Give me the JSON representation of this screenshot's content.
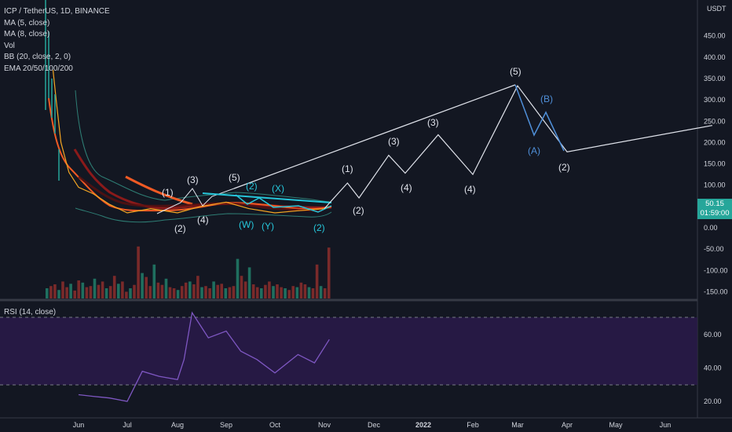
{
  "legend": {
    "title": "ICP / TetherUS, 1D, BINANCE",
    "indicators": [
      "MA (5, close)",
      "MA (8, close)",
      "Vol",
      "BB (20, close, 2, 0)",
      "EMA 20/50/100/200"
    ]
  },
  "rsi_label": "RSI (14, close)",
  "currency": "USDT",
  "price_tag": {
    "price": "50.15",
    "countdown": "01:59:00"
  },
  "colors": {
    "background": "#131722",
    "rsi_band": "#2a1a4a",
    "rsi_line": "#7e57c2",
    "price_tag": "#26a69a",
    "wave_white": "#e0e3eb",
    "wave_cyan": "#26c6da",
    "wave_blue": "#4f8fd8",
    "ema": "#f15a24",
    "ma_dark": "#8b1a1a",
    "bb": "#2e7d74"
  },
  "chart_data": [
    {
      "type": "line",
      "title": "ICP / TetherUS, 1D, BINANCE",
      "ylabel": "USDT",
      "ylim": [
        -170,
        500
      ],
      "y_ticks": [
        "450.00",
        "400.00",
        "350.00",
        "300.00",
        "250.00",
        "200.00",
        "150.00",
        "100.00",
        "0.00",
        "-50.00",
        "-100.00",
        "-150.00"
      ],
      "x_ticks": [
        "Jun",
        "Jul",
        "Aug",
        "Sep",
        "Oct",
        "Nov",
        "Dec",
        "2022",
        "Feb",
        "Mar",
        "Apr",
        "May",
        "Jun"
      ],
      "series": [
        {
          "name": "",
          "style": "price",
          "x": [
            "May 15",
            "May 17",
            "May 20",
            "May 25",
            "Jun 1",
            "Jun 10",
            "Jun 20",
            "Jul 1",
            "Jul 15",
            "Aug 1",
            "Aug 15",
            "Sep 1",
            "Sep 15",
            "Oct 1",
            "Oct 15",
            "Nov 1",
            "Nov 4"
          ],
          "values": [
            370,
            300,
            200,
            130,
            95,
            80,
            55,
            35,
            45,
            35,
            50,
            60,
            45,
            35,
            40,
            45,
            50
          ]
        },
        {
          "name": "",
          "style": "projection",
          "x": [
            "Nov 1",
            "Nov 15",
            "Nov 22",
            "Dec 10",
            "Dec 20",
            "Jan 10",
            "Feb 1",
            "Mar 1",
            "Apr 1",
            "Jun 30"
          ],
          "values": [
            45,
            105,
            70,
            170,
            128,
            218,
            125,
            333,
            178,
            240
          ]
        }
      ],
      "wave_labels": {
        "white": [
          "(1)",
          "(2)",
          "(3)",
          "(4)",
          "(5)",
          "(1)",
          "(2)",
          "(3)",
          "(4)",
          "(3)",
          "(4)",
          "(5)",
          "(2)"
        ],
        "cyan": [
          "(X)",
          "(W)",
          "(Y)",
          "(2)",
          "(2)"
        ],
        "blue": [
          "(A)",
          "(B)"
        ]
      }
    },
    {
      "type": "bar",
      "title": "Vol",
      "values": [
        18,
        22,
        25,
        15,
        30,
        20,
        26,
        14,
        32,
        28,
        20,
        22,
        35,
        24,
        30,
        18,
        22,
        40,
        26,
        30,
        12,
        18,
        24,
        92,
        45,
        38,
        22,
        60,
        28,
        24,
        35,
        20,
        18,
        15,
        22,
        28,
        30,
        25,
        40,
        20,
        22,
        18,
        30,
        24,
        26,
        18,
        20,
        22,
        70,
        40,
        30,
        55,
        25,
        20,
        18,
        24,
        30,
        22,
        25,
        20,
        18,
        15,
        22,
        20,
        28,
        25,
        20,
        18,
        60,
        22,
        18,
        90
      ]
    },
    {
      "type": "line",
      "title": "RSI (14, close)",
      "ylim": [
        15,
        77
      ],
      "y_ticks": [
        "60.00",
        "40.00",
        "20.00"
      ],
      "guides": [
        70,
        30
      ],
      "x": [
        "Jun 1",
        "Jun 10",
        "Jun 20",
        "Jul 1",
        "Jul 10",
        "Jul 20",
        "Aug 1",
        "Aug 5",
        "Aug 10",
        "Aug 20",
        "Sep 1",
        "Sep 10",
        "Sep 20",
        "Oct 1",
        "Oct 15",
        "Oct 25",
        "Nov 4"
      ],
      "values": [
        24,
        23,
        22,
        20,
        38,
        35,
        33,
        45,
        73,
        58,
        62,
        50,
        45,
        37,
        48,
        43,
        57
      ]
    }
  ]
}
